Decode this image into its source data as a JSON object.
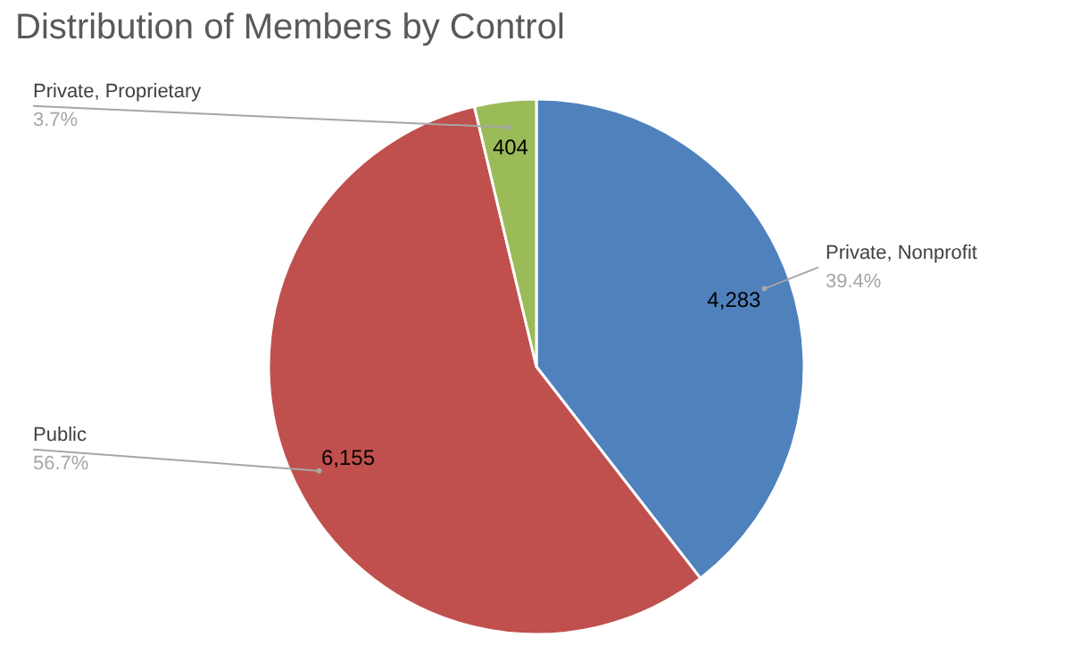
{
  "chart_data": {
    "type": "pie",
    "title": "Distribution of Members by Control",
    "categories": [
      "Private, Nonprofit",
      "Public",
      "Private, Proprietary"
    ],
    "values": [
      4283,
      6155,
      404
    ],
    "colors": [
      "#4f81bd",
      "#c0504d",
      "#9bbb59"
    ],
    "value_labels": [
      "4,283",
      "6,155",
      "404"
    ],
    "annotations": [
      "39.4%",
      "56.7%",
      "3.7%"
    ]
  }
}
